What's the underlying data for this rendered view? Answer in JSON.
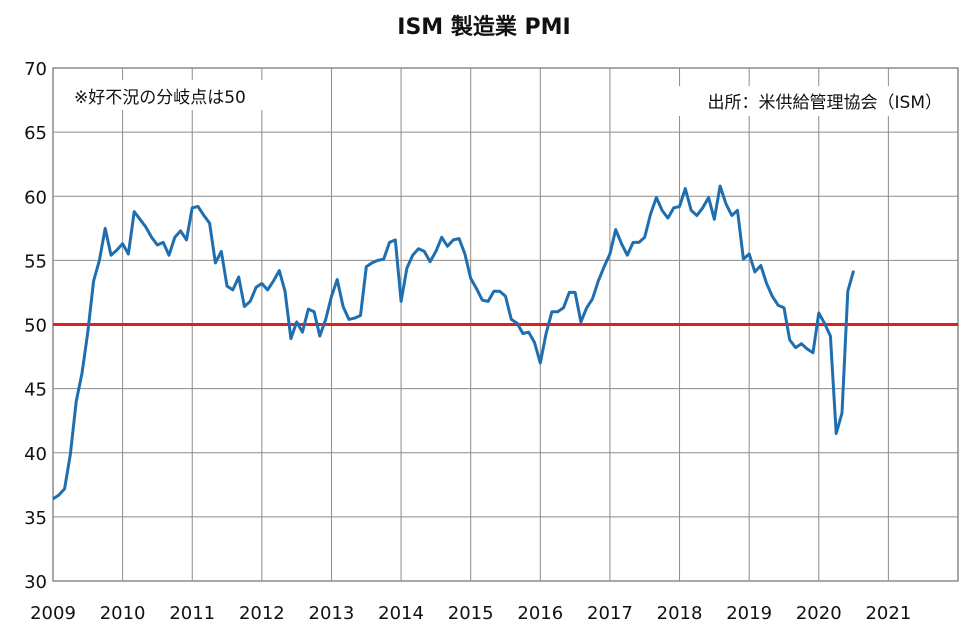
{
  "chart_data": {
    "type": "line",
    "title": "ISM 製造業 PMI",
    "annotations": {
      "left": "※好不況の分岐点は50",
      "right": "出所：米供給管理協会（ISM）"
    },
    "xlim": [
      2009,
      2022
    ],
    "ylim": [
      30,
      70
    ],
    "x_ticks": [
      2009,
      2010,
      2011,
      2012,
      2013,
      2014,
      2015,
      2016,
      2017,
      2018,
      2019,
      2020,
      2021
    ],
    "y_ticks": [
      30,
      35,
      40,
      45,
      50,
      55,
      60,
      65,
      70
    ],
    "grid": true,
    "reference_line": {
      "value": 50,
      "color": "#e02020"
    },
    "series": [
      {
        "color": "#1f6fb0",
        "x": [
          2009.0,
          2009.083,
          2009.167,
          2009.25,
          2009.333,
          2009.417,
          2009.5,
          2009.583,
          2009.667,
          2009.75,
          2009.833,
          2009.917,
          2010.0,
          2010.083,
          2010.167,
          2010.25,
          2010.333,
          2010.417,
          2010.5,
          2010.583,
          2010.667,
          2010.75,
          2010.833,
          2010.917,
          2011.0,
          2011.083,
          2011.167,
          2011.25,
          2011.333,
          2011.417,
          2011.5,
          2011.583,
          2011.667,
          2011.75,
          2011.833,
          2011.917,
          2012.0,
          2012.083,
          2012.167,
          2012.25,
          2012.333,
          2012.417,
          2012.5,
          2012.583,
          2012.667,
          2012.75,
          2012.833,
          2012.917,
          2013.0,
          2013.083,
          2013.167,
          2013.25,
          2013.333,
          2013.417,
          2013.5,
          2013.583,
          2013.667,
          2013.75,
          2013.833,
          2013.917,
          2014.0,
          2014.083,
          2014.167,
          2014.25,
          2014.333,
          2014.417,
          2014.5,
          2014.583,
          2014.667,
          2014.75,
          2014.833,
          2014.917,
          2015.0,
          2015.083,
          2015.167,
          2015.25,
          2015.333,
          2015.417,
          2015.5,
          2015.583,
          2015.667,
          2015.75,
          2015.833,
          2015.917,
          2016.0,
          2016.083,
          2016.167,
          2016.25,
          2016.333,
          2016.417,
          2016.5,
          2016.583,
          2016.667,
          2016.75,
          2016.833,
          2016.917,
          2017.0,
          2017.083,
          2017.167,
          2017.25,
          2017.333,
          2017.417,
          2017.5,
          2017.583,
          2017.667,
          2017.75,
          2017.833,
          2017.917,
          2018.0,
          2018.083,
          2018.167,
          2018.25,
          2018.333,
          2018.417,
          2018.5,
          2018.583,
          2018.667,
          2018.75,
          2018.833,
          2018.917,
          2019.0,
          2019.083,
          2019.167,
          2019.25,
          2019.333,
          2019.417,
          2019.5,
          2019.583,
          2019.667,
          2019.75,
          2019.833,
          2019.917,
          2020.0,
          2020.083,
          2020.167,
          2020.25,
          2020.333,
          2020.417,
          2020.5
        ],
        "values": [
          36.4,
          36.7,
          37.2,
          39.9,
          44.0,
          46.2,
          49.4,
          53.4,
          55.0,
          57.5,
          55.4,
          55.8,
          56.3,
          55.5,
          58.8,
          58.2,
          57.6,
          56.8,
          56.2,
          56.4,
          55.4,
          56.8,
          57.3,
          56.6,
          59.1,
          59.2,
          58.5,
          57.9,
          54.8,
          55.7,
          53.0,
          52.7,
          53.7,
          51.4,
          51.8,
          52.9,
          53.2,
          52.7,
          53.4,
          54.2,
          52.6,
          48.9,
          50.2,
          49.4,
          51.2,
          51.0,
          49.1,
          50.4,
          52.2,
          53.5,
          51.4,
          50.4,
          50.5,
          50.7,
          54.5,
          54.8,
          55.0,
          55.1,
          56.4,
          56.6,
          51.8,
          54.4,
          55.4,
          55.9,
          55.7,
          54.9,
          55.7,
          56.8,
          56.1,
          56.6,
          56.7,
          55.5,
          53.6,
          52.8,
          51.9,
          51.8,
          52.6,
          52.6,
          52.2,
          50.4,
          50.1,
          49.3,
          49.4,
          48.6,
          47.0,
          49.3,
          51.0,
          51.0,
          51.3,
          52.5,
          52.5,
          50.2,
          51.3,
          52.0,
          53.4,
          54.5,
          55.5,
          57.4,
          56.3,
          55.4,
          56.4,
          56.4,
          56.8,
          58.6,
          59.9,
          58.9,
          58.3,
          59.1,
          59.2,
          60.6,
          58.9,
          58.5,
          59.1,
          59.9,
          58.2,
          60.8,
          59.4,
          58.5,
          58.9,
          55.1,
          55.5,
          54.1,
          54.6,
          53.2,
          52.2,
          51.5,
          51.3,
          48.8,
          48.2,
          48.5,
          48.1,
          47.8,
          50.9,
          50.1,
          49.1,
          41.5,
          43.1,
          52.6,
          54.2
        ]
      }
    ]
  }
}
